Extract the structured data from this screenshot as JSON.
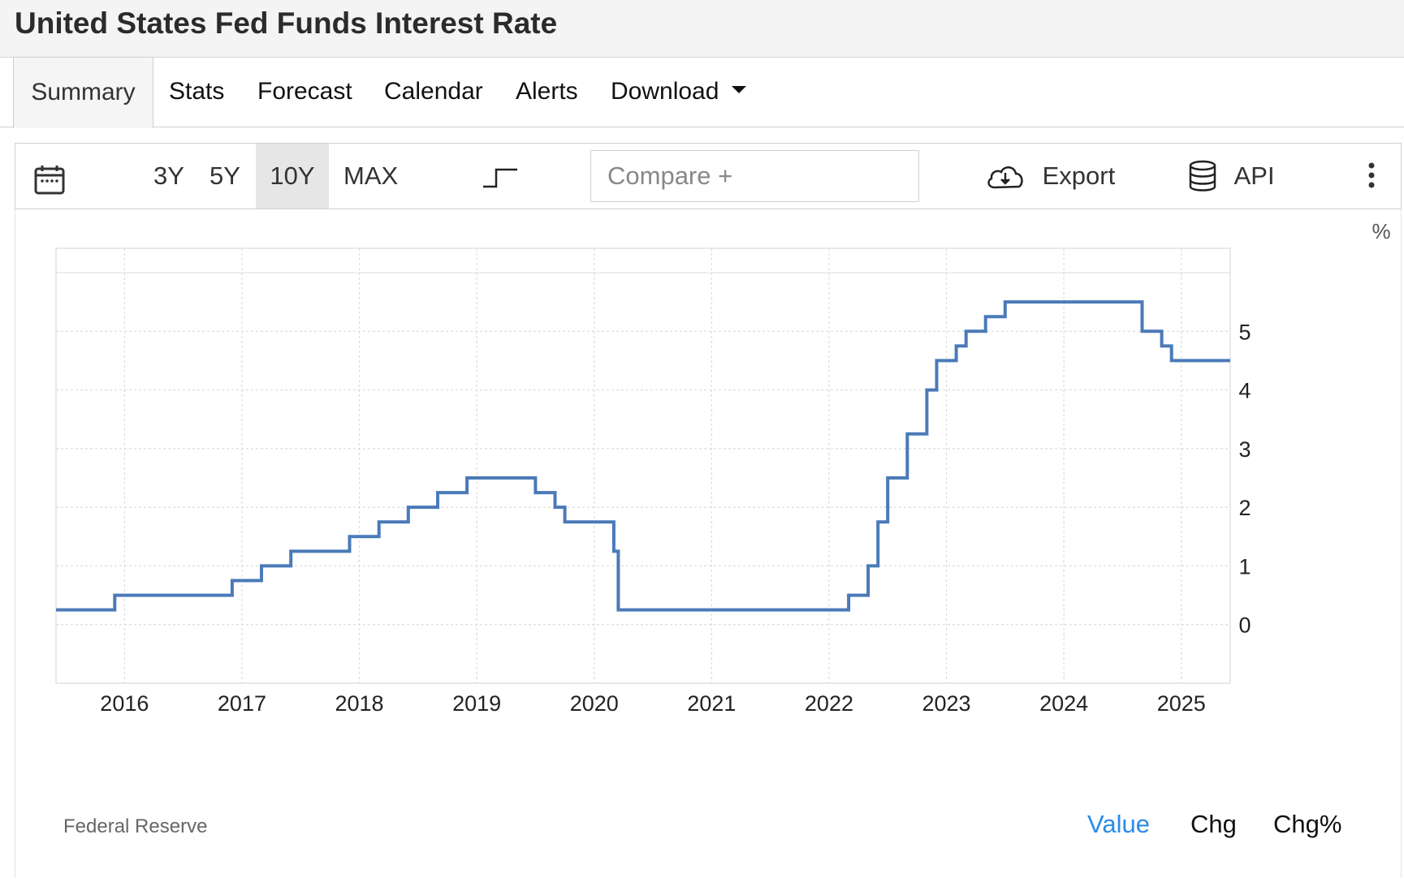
{
  "title": "United States Fed Funds Interest Rate",
  "tabs": [
    "Summary",
    "Stats",
    "Forecast",
    "Calendar",
    "Alerts",
    "Download"
  ],
  "toolbar": {
    "ranges": [
      "3Y",
      "5Y",
      "10Y",
      "MAX"
    ],
    "selected_range": "10Y",
    "compare_placeholder": "Compare +",
    "export_label": "Export",
    "api_label": "API"
  },
  "icons": [
    "calendar-icon",
    "step-chart-icon",
    "cloud-download-icon",
    "database-icon",
    "more-vertical-icon"
  ],
  "colors": {
    "line": "#4a7ab8",
    "active_mode": "#2a8be8"
  },
  "source": "Federal Reserve",
  "modes": [
    "Value",
    "Chg",
    "Chg%"
  ],
  "active_mode": "Value",
  "chart_data": {
    "type": "line",
    "step": true,
    "unit": "%",
    "x_ticks": [
      "2016",
      "2017",
      "2018",
      "2019",
      "2020",
      "2021",
      "2022",
      "2023",
      "2024",
      "2025"
    ],
    "y_ticks": [
      "0",
      "1",
      "2",
      "3",
      "4",
      "5"
    ],
    "xlim": [
      "2015-06",
      "2025-06"
    ],
    "ylim": [
      -1,
      6
    ],
    "grid": true,
    "series": [
      {
        "values": [
          {
            "x": "2015-06",
            "y": 0.25
          },
          {
            "x": "2015-12",
            "y": 0.5
          },
          {
            "x": "2016-12",
            "y": 0.75
          },
          {
            "x": "2017-03",
            "y": 1.0
          },
          {
            "x": "2017-06",
            "y": 1.25
          },
          {
            "x": "2017-12",
            "y": 1.5
          },
          {
            "x": "2018-03",
            "y": 1.75
          },
          {
            "x": "2018-06",
            "y": 2.0
          },
          {
            "x": "2018-09",
            "y": 2.25
          },
          {
            "x": "2018-12",
            "y": 2.5
          },
          {
            "x": "2019-07",
            "y": 2.25
          },
          {
            "x": "2019-09",
            "y": 2.0
          },
          {
            "x": "2019-10",
            "y": 1.75
          },
          {
            "x": "2020-03",
            "y": 1.25
          },
          {
            "x": "2020-03-15",
            "y": 0.25
          },
          {
            "x": "2022-03",
            "y": 0.5
          },
          {
            "x": "2022-05",
            "y": 1.0
          },
          {
            "x": "2022-06",
            "y": 1.75
          },
          {
            "x": "2022-07",
            "y": 2.5
          },
          {
            "x": "2022-09",
            "y": 3.25
          },
          {
            "x": "2022-11",
            "y": 4.0
          },
          {
            "x": "2022-12",
            "y": 4.5
          },
          {
            "x": "2023-02",
            "y": 4.75
          },
          {
            "x": "2023-03",
            "y": 5.0
          },
          {
            "x": "2023-05",
            "y": 5.25
          },
          {
            "x": "2023-07",
            "y": 5.5
          },
          {
            "x": "2024-09",
            "y": 5.0
          },
          {
            "x": "2024-11",
            "y": 4.75
          },
          {
            "x": "2024-12",
            "y": 4.5
          },
          {
            "x": "2025-06",
            "y": 4.5
          }
        ]
      }
    ]
  }
}
